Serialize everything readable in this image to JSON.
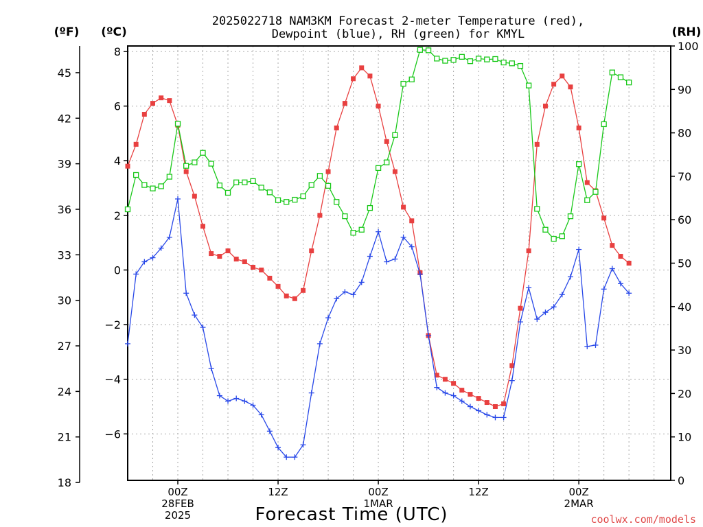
{
  "chart_data": {
    "type": "line",
    "title": [
      "2025022718 NAM3KM Forecast 2-meter Temperature (red),",
      "Dewpoint (blue), RH (green) for KMYL"
    ],
    "xlabel": "Forecast Time (UTC)",
    "units": {
      "fahrenheit": "(ºF)",
      "celsius": "(ºC)",
      "rh": "(RH)"
    },
    "credit": "coolwx.com/models",
    "x_hours": [
      -6,
      -5,
      -4,
      -3,
      -2,
      -1,
      0,
      1,
      2,
      3,
      4,
      5,
      6,
      7,
      8,
      9,
      10,
      11,
      12,
      13,
      14,
      15,
      16,
      17,
      18,
      19,
      20,
      21,
      22,
      23,
      24,
      25,
      26,
      27,
      28,
      29,
      30,
      31,
      32,
      33,
      34,
      35,
      36,
      37,
      38,
      39,
      40,
      41,
      42,
      43,
      44,
      45,
      46,
      47,
      48,
      49,
      50,
      51,
      52,
      53,
      54,
      55,
      56,
      57,
      58,
      59
    ],
    "x_ticks": [
      {
        "hour": 0,
        "lines": [
          "00Z",
          "28FEB",
          "2025"
        ]
      },
      {
        "hour": 12,
        "lines": [
          "12Z"
        ]
      },
      {
        "hour": 24,
        "lines": [
          "00Z",
          "1MAR"
        ]
      },
      {
        "hour": 36,
        "lines": [
          "12Z"
        ]
      },
      {
        "hour": 48,
        "lines": [
          "00Z",
          "2MAR"
        ]
      }
    ],
    "x_range": [
      -6,
      59
    ],
    "celsius_axis": {
      "range": [
        -7.7,
        8.2
      ],
      "ticks": [
        8,
        6,
        4,
        2,
        0,
        -2,
        -4,
        -6
      ]
    },
    "fahrenheit_axis": {
      "ticks": [
        45,
        42,
        39,
        36,
        33,
        30,
        27,
        24,
        21,
        18
      ]
    },
    "rh_axis": {
      "range": [
        0,
        100
      ],
      "ticks": [
        100,
        90,
        80,
        70,
        60,
        50,
        40,
        30,
        20,
        10,
        0
      ]
    },
    "grid": true,
    "series": [
      {
        "name": "Temperature",
        "axis": "celsius",
        "color": "#e84040",
        "marker": "square",
        "values": [
          3.8,
          4.6,
          5.7,
          6.1,
          6.3,
          6.2,
          5.3,
          3.6,
          2.7,
          1.6,
          0.6,
          0.5,
          0.7,
          0.4,
          0.3,
          0.1,
          0.0,
          -0.3,
          -0.6,
          -0.95,
          -1.05,
          -0.75,
          0.7,
          2.0,
          3.6,
          5.2,
          6.1,
          7.0,
          7.4,
          7.1,
          6.0,
          4.7,
          3.6,
          2.3,
          1.8,
          -0.1,
          -2.4,
          -3.85,
          -4.0,
          -4.15,
          -4.4,
          -4.55,
          -4.7,
          -4.85,
          -5.0,
          -4.9,
          -3.5,
          -1.4,
          0.7,
          4.6,
          6.0,
          6.8,
          7.1,
          6.7,
          5.2,
          3.2,
          2.9,
          1.9,
          0.9,
          0.5,
          0.25
        ]
      },
      {
        "name": "Dewpoint",
        "axis": "celsius",
        "color": "#2848e8",
        "marker": "plus",
        "values": [
          -2.7,
          -0.15,
          0.3,
          0.45,
          0.8,
          1.2,
          2.6,
          -0.85,
          -1.65,
          -2.1,
          -3.6,
          -4.6,
          -4.8,
          -4.7,
          -4.8,
          -4.95,
          -5.3,
          -5.9,
          -6.5,
          -6.85,
          -6.85,
          -6.4,
          -4.5,
          -2.7,
          -1.75,
          -1.05,
          -0.8,
          -0.9,
          -0.45,
          0.5,
          1.4,
          0.3,
          0.4,
          1.2,
          0.85,
          -0.15,
          -2.4,
          -4.3,
          -4.5,
          -4.6,
          -4.8,
          -5.0,
          -5.15,
          -5.3,
          -5.4,
          -5.4,
          -4.05,
          -1.9,
          -0.65,
          -1.8,
          -1.55,
          -1.35,
          -0.9,
          -0.25,
          0.75,
          -2.8,
          -2.75,
          -0.7,
          0.05,
          -0.5,
          -0.85
        ]
      },
      {
        "name": "RH",
        "axis": "rh",
        "color": "#18c818",
        "marker": "open-square",
        "values": [
          62.4,
          70.3,
          68.0,
          67.2,
          67.7,
          69.9,
          82.1,
          72.4,
          73.2,
          75.4,
          72.9,
          67.9,
          66.2,
          68.6,
          68.6,
          68.9,
          67.4,
          66.3,
          64.5,
          64.1,
          64.6,
          65.4,
          68.0,
          70.1,
          67.8,
          64.1,
          60.8,
          57.0,
          57.7,
          62.7,
          71.9,
          73.2,
          79.5,
          91.3,
          92.3,
          99.1,
          99.0,
          97.1,
          96.6,
          96.8,
          97.5,
          96.5,
          97.1,
          96.9,
          97.0,
          96.2,
          96.0,
          95.4,
          90.9,
          62.5,
          57.7,
          55.6,
          56.2,
          60.8,
          72.8,
          64.5,
          66.4,
          82.0,
          93.9,
          92.8,
          91.6
        ]
      }
    ]
  }
}
